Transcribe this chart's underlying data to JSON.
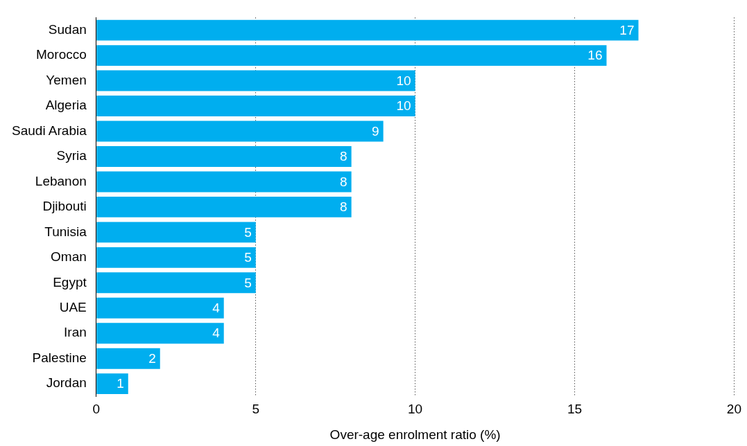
{
  "chart_data": {
    "type": "bar",
    "orientation": "horizontal",
    "xlabel": "Over-age enrolment ratio (%)",
    "categories": [
      "Sudan",
      "Morocco",
      "Yemen",
      "Algeria",
      "Saudi Arabia",
      "Syria",
      "Lebanon",
      "Djibouti",
      "Tunisia",
      "Oman",
      "Egypt",
      "UAE",
      "Iran",
      "Palestine",
      "Jordan"
    ],
    "values": [
      17,
      16,
      10,
      10,
      9,
      8,
      8,
      8,
      5,
      5,
      5,
      4,
      4,
      2,
      1
    ],
    "color": "#00aeef",
    "xlim": [
      0,
      20
    ],
    "xticks": [
      0,
      5,
      10,
      15,
      20
    ],
    "grid": "x",
    "data_labels": true,
    "legend": false
  }
}
